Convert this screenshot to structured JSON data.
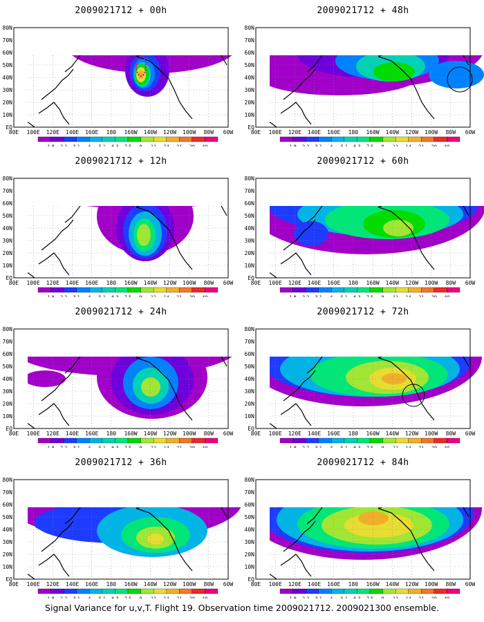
{
  "figure": {
    "caption": "Signal Variance for u,v,T. Flight 19. Observation time 2009021712. 2009021300 ensemble."
  },
  "colorbar": {
    "labels": [
      "1.8",
      "2.2",
      "3.1",
      "4",
      "5.1",
      "6.3",
      "7.5",
      "9",
      "11",
      "14",
      "21",
      "29",
      "40"
    ],
    "colors": [
      "#a000c8",
      "#6e00dc",
      "#1e3cff",
      "#0082ff",
      "#00b4e6",
      "#00d2b4",
      "#00e678",
      "#00dc00",
      "#a0e632",
      "#e6dc32",
      "#f0af28",
      "#f07828",
      "#f02828",
      "#f00082"
    ]
  },
  "map": {
    "lat_labels": [
      "80N",
      "70N",
      "60N",
      "50N",
      "40N",
      "30N",
      "20N",
      "10N",
      "EQ"
    ],
    "lon_labels": [
      "80E",
      "100E",
      "120E",
      "140E",
      "160E",
      "180",
      "160W",
      "140W",
      "120W",
      "100W",
      "80W",
      "60W"
    ],
    "background": "#ffffff",
    "coastline_color": "#000000",
    "grid": "dotted"
  },
  "panels": [
    {
      "title": "2009021712 + 00h"
    },
    {
      "title": "2009021712 + 48h"
    },
    {
      "title": "2009021712 + 12h"
    },
    {
      "title": "2009021712 + 60h"
    },
    {
      "title": "2009021712 + 24h"
    },
    {
      "title": "2009021712 + 72h"
    },
    {
      "title": "2009021712 + 36h"
    },
    {
      "title": "2009021712 + 84h"
    }
  ]
}
